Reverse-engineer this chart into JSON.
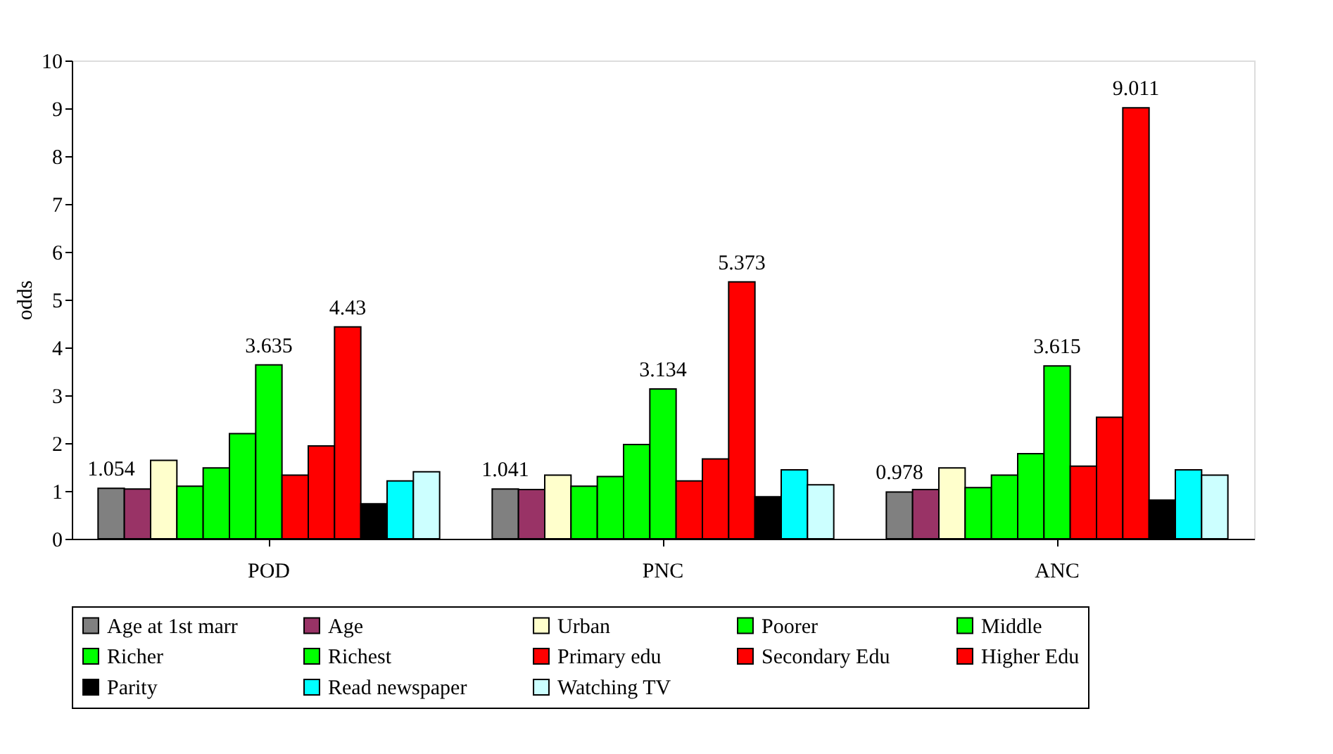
{
  "chart_data": {
    "type": "bar",
    "ylabel": "odds",
    "categories": [
      "POD",
      "PNC",
      "ANC"
    ],
    "ylim": [
      0,
      10
    ],
    "yticks": [
      0,
      1,
      2,
      3,
      4,
      5,
      6,
      7,
      8,
      9,
      10
    ],
    "grid": false,
    "legend": "bottom",
    "series": [
      {
        "name": "Age at 1st marr",
        "color": "#808080",
        "values": [
          1.054,
          1.041,
          0.978
        ],
        "value_labels": [
          "1.054",
          "1.041",
          "0.978"
        ]
      },
      {
        "name": "Age",
        "color": "#993366",
        "values": [
          1.04,
          1.03,
          1.03
        ]
      },
      {
        "name": "Urban",
        "color": "#ffffcc",
        "values": [
          1.64,
          1.33,
          1.48
        ]
      },
      {
        "name": "Poorer",
        "color": "#00ff00",
        "values": [
          1.1,
          1.1,
          1.07
        ]
      },
      {
        "name": "Middle",
        "color": "#00ff00",
        "values": [
          1.48,
          1.3,
          1.33
        ]
      },
      {
        "name": "Richer",
        "color": "#00ff00",
        "values": [
          2.2,
          1.97,
          1.78
        ]
      },
      {
        "name": "Richest",
        "color": "#00ff00",
        "values": [
          3.635,
          3.134,
          3.615
        ],
        "value_labels": [
          "3.635",
          "3.134",
          "3.615"
        ]
      },
      {
        "name": "Primary edu",
        "color": "#ff0000",
        "values": [
          1.33,
          1.21,
          1.52
        ]
      },
      {
        "name": "Secondary Edu",
        "color": "#ff0000",
        "values": [
          1.94,
          1.67,
          2.54
        ]
      },
      {
        "name": "Higher Edu",
        "color": "#ff0000",
        "values": [
          4.43,
          5.373,
          9.011
        ],
        "value_labels": [
          "4.43",
          "5.373",
          "9.011"
        ]
      },
      {
        "name": "Parity",
        "color": "#000000",
        "values": [
          0.73,
          0.88,
          0.81
        ]
      },
      {
        "name": "Read newspaper",
        "color": "#00ffff",
        "values": [
          1.21,
          1.44,
          1.44
        ]
      },
      {
        "name": "Watching TV",
        "color": "#ccffff",
        "values": [
          1.4,
          1.13,
          1.33
        ]
      }
    ]
  }
}
